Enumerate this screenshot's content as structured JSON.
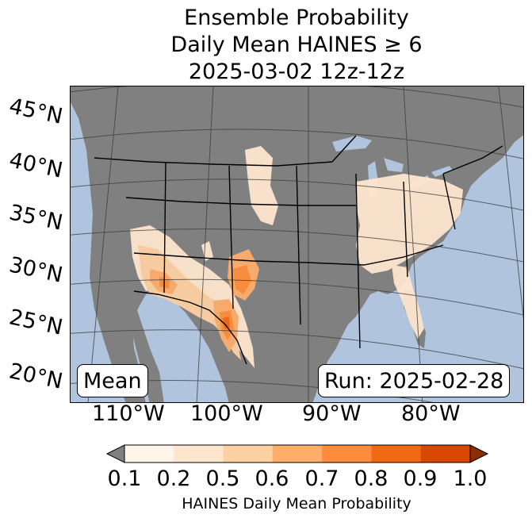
{
  "title": {
    "line1": "Ensemble Probability",
    "line2": "Daily Mean HAINES ≥ 6",
    "line3": "2025-03-02 12z-12z"
  },
  "map": {
    "lat_labels": [
      "45°N",
      "40°N",
      "35°N",
      "30°N",
      "25°N",
      "20°N"
    ],
    "lon_labels": [
      "110°W",
      "100°W",
      "90°W",
      "80°W"
    ],
    "stat_box": "Mean",
    "run_box": "Run: 2025-02-28",
    "ocean_color": "#b0c4de",
    "land_color": "#808080"
  },
  "colorbar": {
    "label": "HAINES Daily Mean Probability",
    "ticks": [
      "0.1",
      "0.2",
      "0.5",
      "0.6",
      "0.7",
      "0.8",
      "0.9",
      "1.0"
    ],
    "colors": [
      "#808080",
      "#fff5eb",
      "#fee6ce",
      "#fdd0a2",
      "#fdae6b",
      "#fd8d3c",
      "#f16913",
      "#d94801",
      "#8c2d04"
    ]
  }
}
